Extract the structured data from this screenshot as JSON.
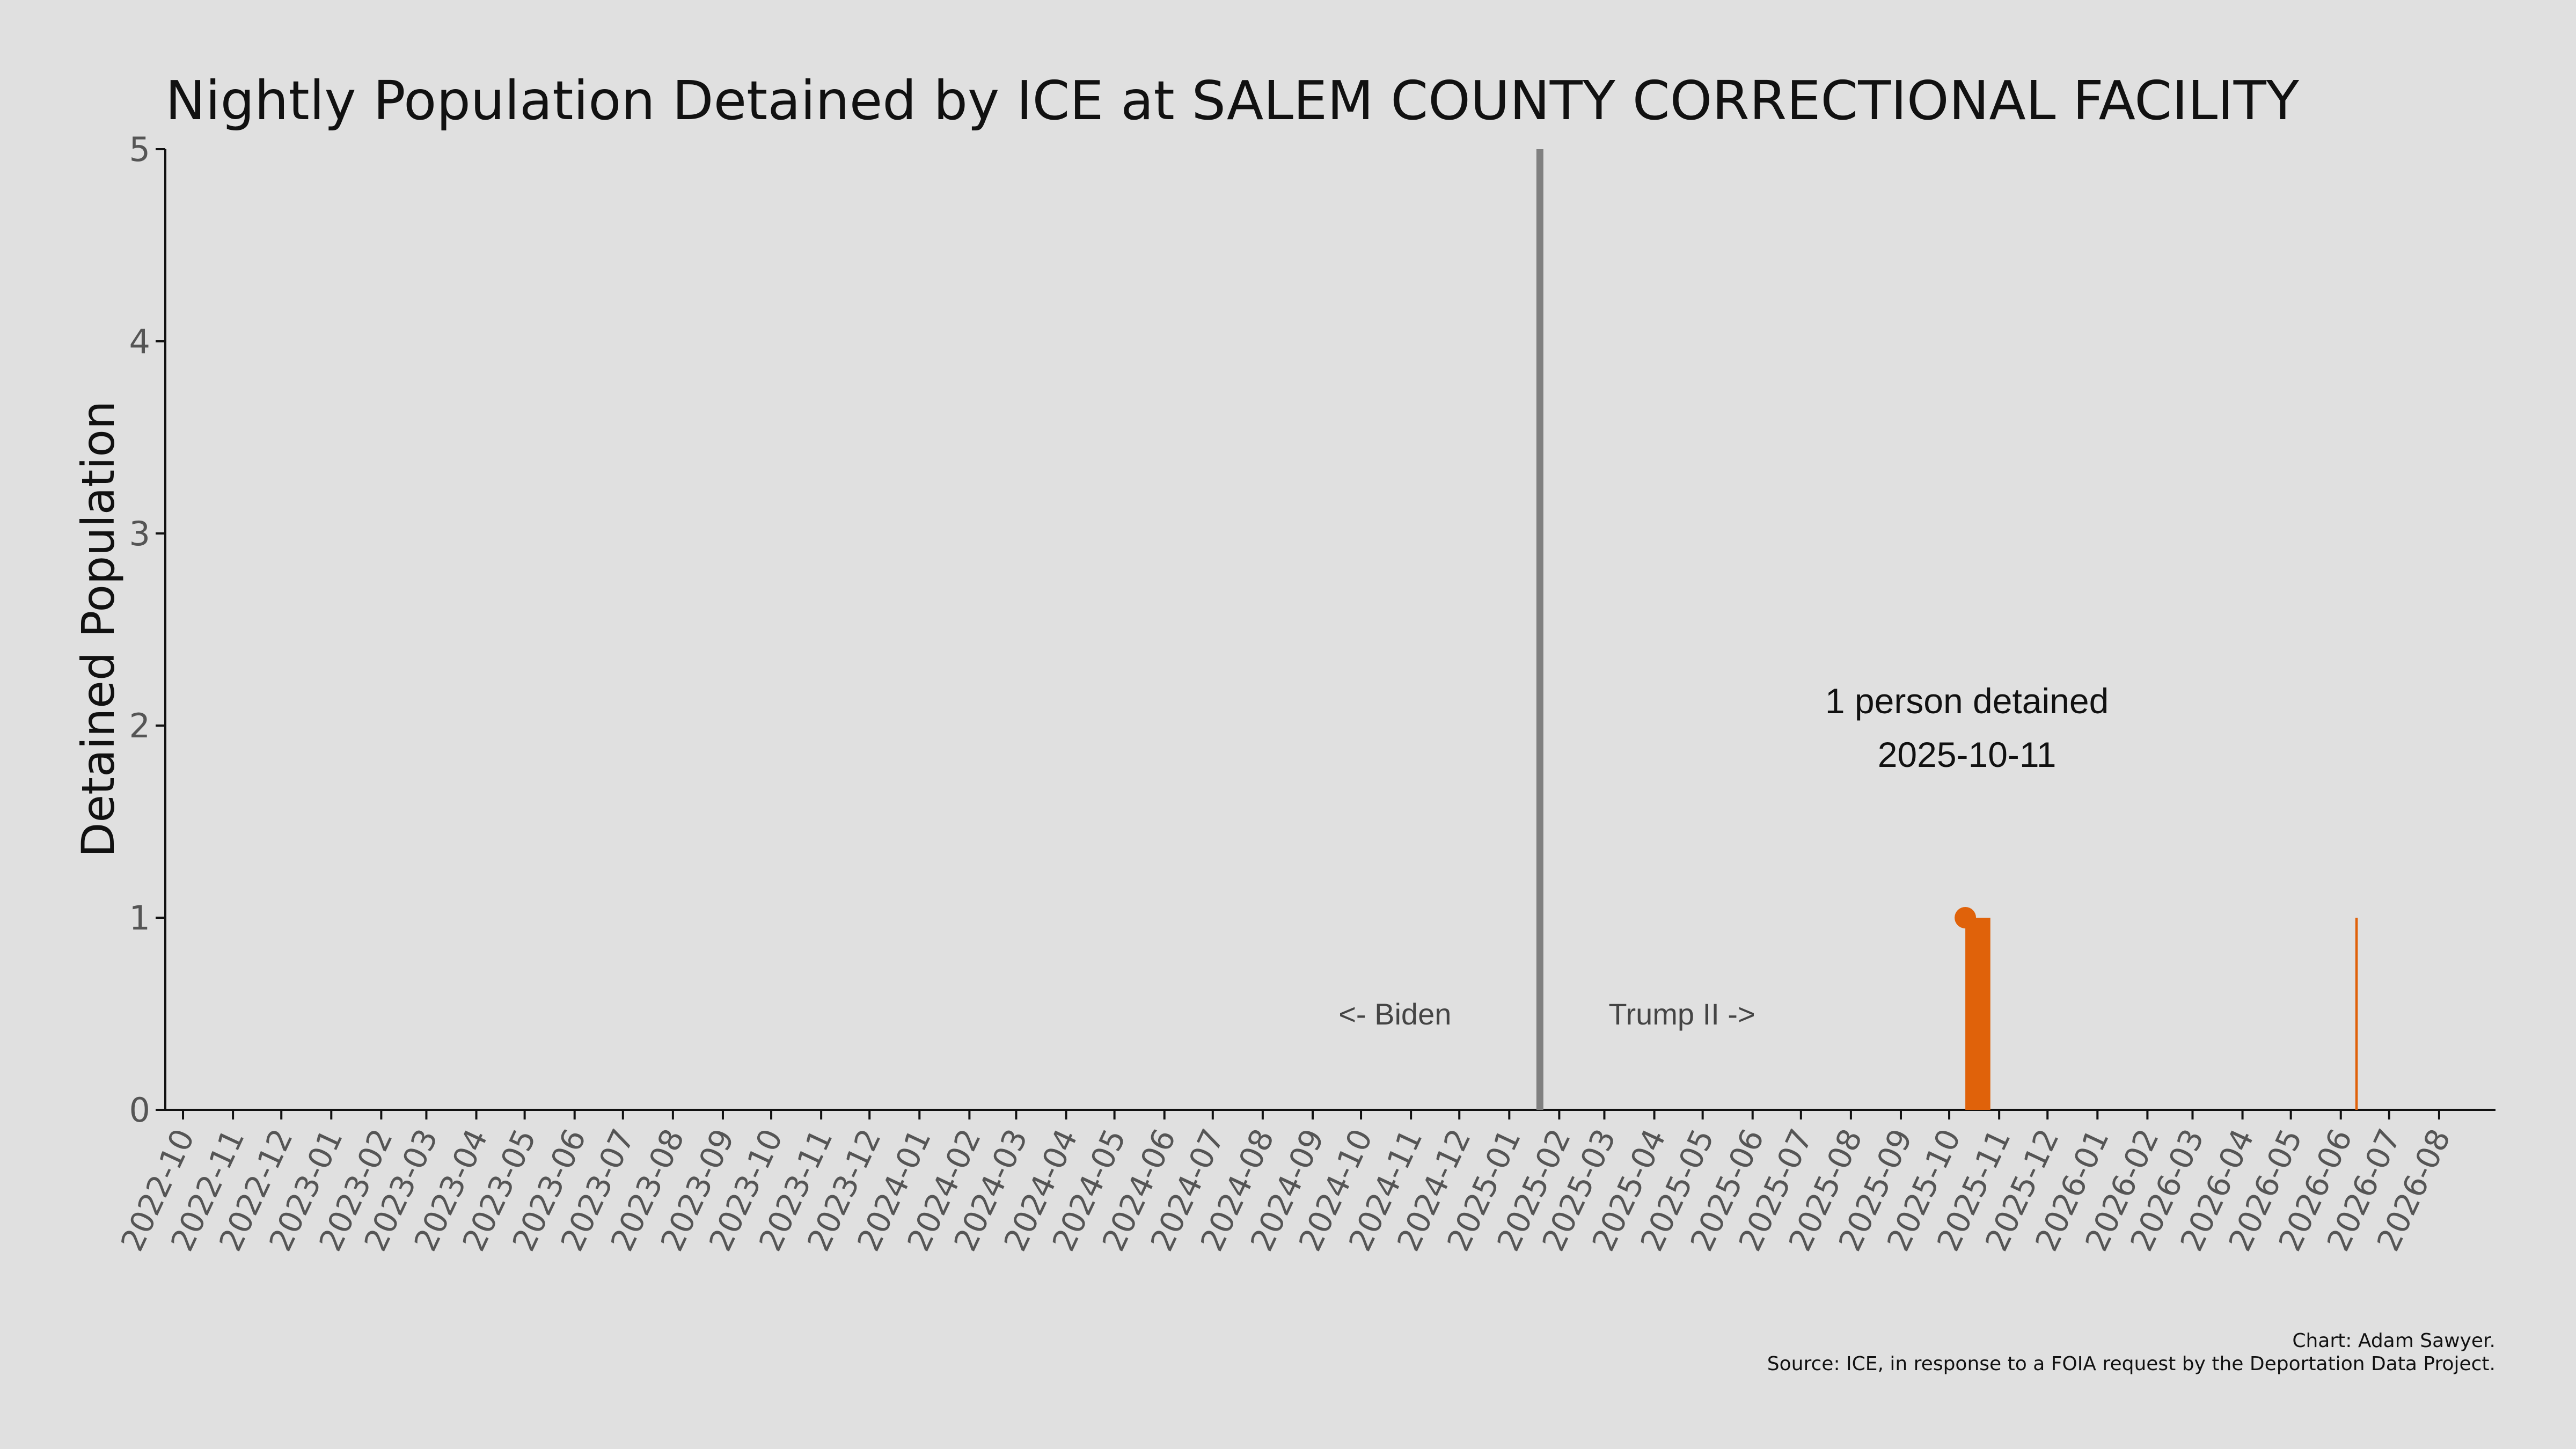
{
  "chart_data": {
    "type": "bar",
    "title": "Nightly Population Detained by ICE at SALEM COUNTY CORRECTIONAL FACILITY",
    "xlabel": "",
    "ylabel": "Detained Population",
    "ylim": [
      0,
      5
    ],
    "yticks": [
      "0",
      "1",
      "2",
      "3",
      "4",
      "5"
    ],
    "xlim": [
      "2022-09-20",
      "2026-09-05"
    ],
    "xticks": [
      "2022-10",
      "2022-11",
      "2022-12",
      "2023-01",
      "2023-02",
      "2023-03",
      "2023-04",
      "2023-05",
      "2023-06",
      "2023-07",
      "2023-08",
      "2023-09",
      "2023-10",
      "2023-11",
      "2023-12",
      "2024-01",
      "2024-02",
      "2024-03",
      "2024-04",
      "2024-05",
      "2024-06",
      "2024-07",
      "2024-08",
      "2024-09",
      "2024-10",
      "2024-11",
      "2024-12",
      "2025-01",
      "2025-02",
      "2025-03",
      "2025-04",
      "2025-05",
      "2025-06",
      "2025-07",
      "2025-08",
      "2025-09",
      "2025-10",
      "2025-11",
      "2025-12",
      "2026-01",
      "2026-02",
      "2026-03",
      "2026-04",
      "2026-05",
      "2026-06",
      "2026-07",
      "2026-08"
    ],
    "series": [
      {
        "color": "#e0620a",
        "points": [
          {
            "x": "2025-10-11",
            "y": 1
          },
          {
            "x": "2025-10-12",
            "y": 1
          },
          {
            "x": "2025-10-13",
            "y": 1
          },
          {
            "x": "2025-10-14",
            "y": 1
          },
          {
            "x": "2025-10-15",
            "y": 1
          },
          {
            "x": "2025-10-16",
            "y": 1
          },
          {
            "x": "2025-10-17",
            "y": 1
          },
          {
            "x": "2025-10-18",
            "y": 1
          },
          {
            "x": "2025-10-19",
            "y": 1
          },
          {
            "x": "2025-10-20",
            "y": 1
          },
          {
            "x": "2025-10-21",
            "y": 1
          },
          {
            "x": "2025-10-22",
            "y": 1
          },
          {
            "x": "2025-10-23",
            "y": 1
          },
          {
            "x": "2025-10-24",
            "y": 1
          },
          {
            "x": "2025-10-25",
            "y": 1
          },
          {
            "x": "2026-06-10",
            "y": 1
          }
        ]
      }
    ],
    "highlight": {
      "x": "2025-10-11",
      "y": 1,
      "label_line1": "1 person detained",
      "label_line2": "2025-10-11"
    },
    "divider": {
      "x": "2025-01-20",
      "color": "#808080"
    },
    "left_era_label": "<- Biden",
    "right_era_label": "Trump II ->",
    "grid": false,
    "legend": "none"
  },
  "credits": {
    "line1": "Chart: Adam Sawyer.",
    "line2": "Source: ICE, in response to a FOIA request by the Deportation Data Project."
  }
}
